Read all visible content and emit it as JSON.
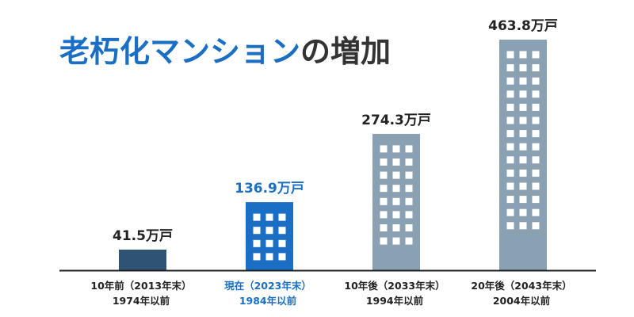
{
  "title": {
    "part1": "老朽化マンション",
    "part2": "の増加",
    "part1_color": "#1a6fc4",
    "part2_color": "#333333"
  },
  "chart_data": {
    "type": "bar",
    "title": "老朽化マンションの増加",
    "unit": "万戸",
    "categories": [
      {
        "line1": "10年前（2013年末）",
        "line2": "1974年以前"
      },
      {
        "line1": "現在（2023年末）",
        "line2": "1984年以前"
      },
      {
        "line1": "10年後（2033年末）",
        "line2": "1994年以前"
      },
      {
        "line1": "20年後（2043年末）",
        "line2": "2004年以前"
      }
    ],
    "values": [
      41.5,
      136.9,
      274.3,
      463.8
    ],
    "value_labels": [
      "41.5万戸",
      "136.9万戸",
      "274.3万戸",
      "463.8万戸"
    ],
    "bar_colors": [
      "#2f5374",
      "#1a6fc4",
      "#8aa0b3",
      "#8aa0b3"
    ],
    "label_colors": [
      "#222222",
      "#1a6fc4",
      "#222222",
      "#222222"
    ],
    "window_rows": [
      1,
      4,
      8,
      14
    ],
    "highlight_index": 1,
    "ylim": [
      0,
      463.8
    ]
  }
}
